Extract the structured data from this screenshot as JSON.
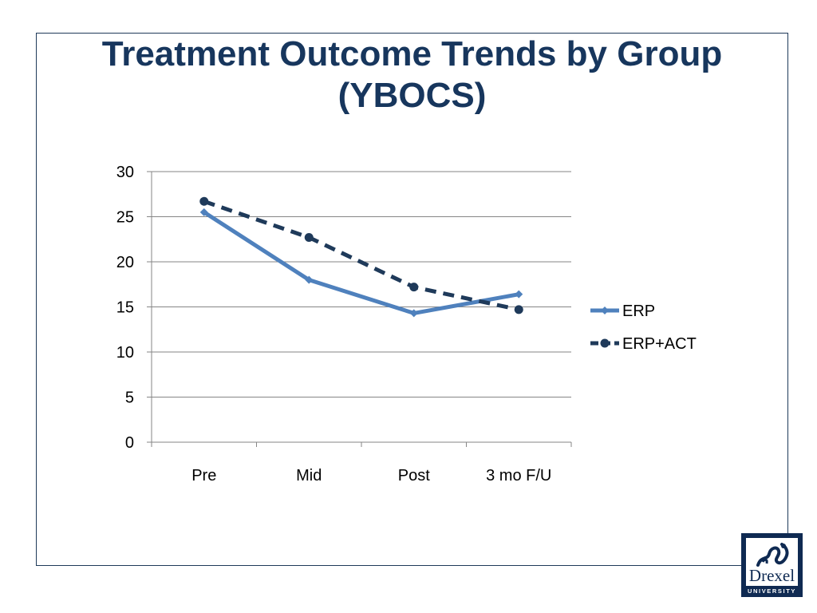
{
  "slide": {
    "title_line1": "Treatment Outcome Trends by Group",
    "title_line2": "(YBOCS)"
  },
  "logo": {
    "name": "Drexel",
    "subtitle": "UNIVERSITY"
  },
  "chart_data": {
    "type": "line",
    "title": "",
    "xlabel": "",
    "ylabel": "",
    "categories": [
      "Pre",
      "Mid",
      "Post",
      "3 mo F/U"
    ],
    "ylim": [
      0,
      30
    ],
    "yticks": [
      0,
      5,
      10,
      15,
      20,
      25,
      30
    ],
    "grid": true,
    "legend_position": "right",
    "series": [
      {
        "name": "ERP",
        "values": [
          25.5,
          18.0,
          14.3,
          16.4
        ],
        "color": "#4f81bd",
        "line_style": "solid",
        "marker": "diamond"
      },
      {
        "name": "ERP+ACT",
        "values": [
          26.7,
          22.7,
          17.2,
          14.7
        ],
        "color": "#1f3a5a",
        "line_style": "dashed",
        "marker": "circle"
      }
    ]
  }
}
